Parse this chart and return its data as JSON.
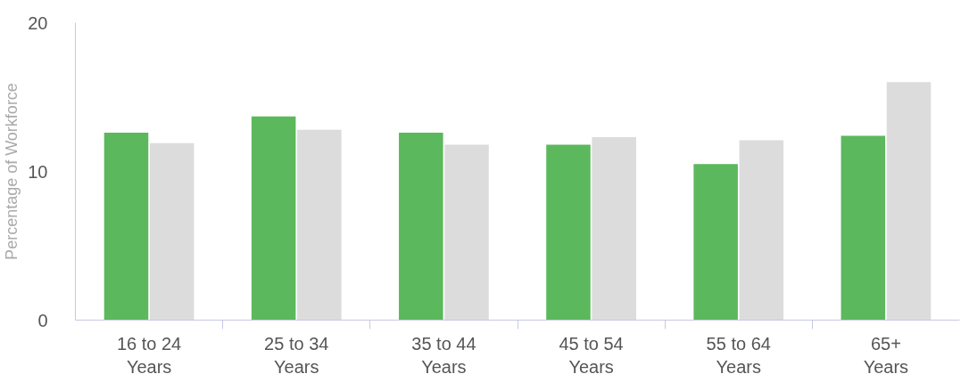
{
  "chart_data": {
    "type": "bar",
    "ylabel": "Percentage of Workforce",
    "categories": [
      "16 to 24 Years",
      "25 to 34 Years",
      "35 to 44 Years",
      "45 to 54 Years",
      "55 to 64 Years",
      "65+ Years"
    ],
    "series": [
      {
        "color": "#5cb85c",
        "values": [
          12.6,
          13.7,
          12.6,
          11.8,
          10.5,
          12.4
        ]
      },
      {
        "color": "#dcdcdc",
        "values": [
          11.9,
          12.8,
          11.8,
          12.3,
          12.1,
          16.0
        ]
      }
    ],
    "ylim": [
      0,
      20
    ],
    "yticks": [
      0,
      10,
      20
    ],
    "grid": false
  }
}
